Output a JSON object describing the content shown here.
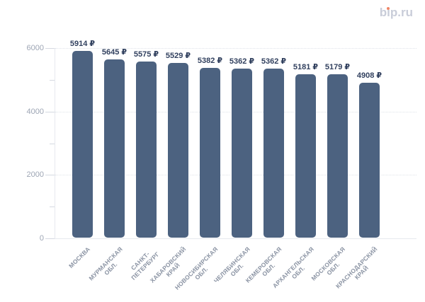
{
  "logo": {
    "text": "bip.ru",
    "text_color": "#c9cdd9",
    "dot_color": "#f08566"
  },
  "chart_data": {
    "type": "bar",
    "title": "",
    "xlabel": "",
    "ylabel": "",
    "legend": "none",
    "grid": "dotted horizontal lines at major y ticks",
    "categories": [
      "МОСКВА",
      "МУРМАНСКАЯ ОБЛ.",
      "САНКТ-ПЕТЕРБУРГ",
      "ХАБАРОВСКИЙ КРАЙ",
      "НОВОСИБИРСКАЯ ОБЛ.",
      "ЧЕЛЯБИНСКАЯ ОБЛ.",
      "КЕМЕРОВСКАЯ ОБЛ.",
      "АРХАНГЕЛЬСКАЯ ОБЛ.",
      "МОСКОВСКАЯ ОБЛ.",
      "КРАСНОДАРСКИЙ КРАЙ"
    ],
    "category_lines": [
      [
        "МОСКВА"
      ],
      [
        "МУРМАНСКАЯ",
        "ОБЛ."
      ],
      [
        "САНКТ-",
        "ПЕТЕРБУРГ"
      ],
      [
        "ХАБАРОВСКИЙ",
        "КРАЙ"
      ],
      [
        "НОВОСИБИРСКАЯ",
        "ОБЛ."
      ],
      [
        "ЧЕЛЯБИНСКАЯ",
        "ОБЛ."
      ],
      [
        "КЕМЕРОВСКАЯ",
        "ОБЛ."
      ],
      [
        "АРХАНГЕЛЬСКАЯ",
        "ОБЛ."
      ],
      [
        "МОСКОВСКАЯ",
        "ОБЛ."
      ],
      [
        "КРАСНОДАРСКИЙ",
        "КРАЙ"
      ]
    ],
    "values": [
      5914,
      5645,
      5575,
      5529,
      5382,
      5362,
      5362,
      5181,
      5179,
      4908
    ],
    "value_labels": [
      "5914 ₽",
      "5645 ₽",
      "5575 ₽",
      "5529 ₽",
      "5382 ₽",
      "5362 ₽",
      "5362 ₽",
      "5181 ₽",
      "5179 ₽",
      "4908 ₽"
    ],
    "currency": "₽",
    "ylim": [
      0,
      6000
    ],
    "yticks_major": [
      0,
      2000,
      4000,
      6000
    ],
    "yticks_minor": [
      1000,
      3000,
      5000
    ],
    "bar_color": "#4c6280",
    "value_label_color": "#32415f",
    "x_label_color": "#8a93a3",
    "y_label_color": "#9da5b4"
  }
}
